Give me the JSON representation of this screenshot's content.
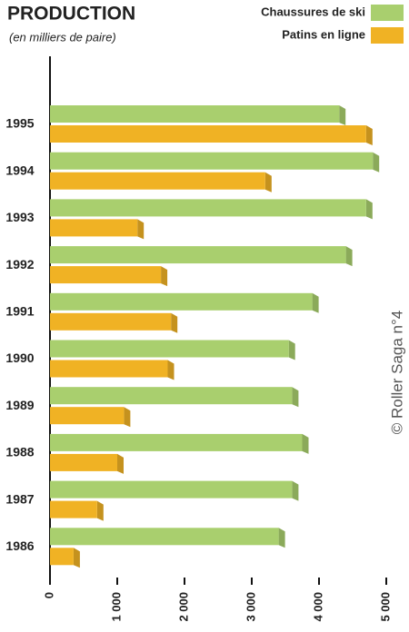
{
  "chart_data": {
    "type": "bar",
    "orientation": "horizontal",
    "title": "PRODUCTION",
    "subtitle": "(en milliers de paire)",
    "credit": "© Roller Saga n°4",
    "categories": [
      "1995",
      "1994",
      "1993",
      "1992",
      "1991",
      "1990",
      "1989",
      "1988",
      "1987",
      "1986"
    ],
    "series": [
      {
        "name": "Chaussures de ski",
        "color": "#a9cf6e",
        "values": [
          4300,
          4800,
          4700,
          4400,
          3900,
          3550,
          3600,
          3750,
          3600,
          3400
        ]
      },
      {
        "name": "Patins en ligne",
        "color": "#f0b224",
        "values": [
          4700,
          3200,
          1300,
          1650,
          1800,
          1750,
          1100,
          1000,
          700,
          350
        ]
      }
    ],
    "xlim": [
      0,
      5000
    ],
    "xticks": [
      0,
      {
        "value": 1000,
        "label": "1 000"
      },
      {
        "value": 2000,
        "label": "2 000"
      },
      {
        "value": 3000,
        "label": "3 000"
      },
      {
        "value": 4000,
        "label": "4 000"
      },
      {
        "value": 5000,
        "label": "5 000"
      }
    ],
    "legend": "top-right"
  }
}
